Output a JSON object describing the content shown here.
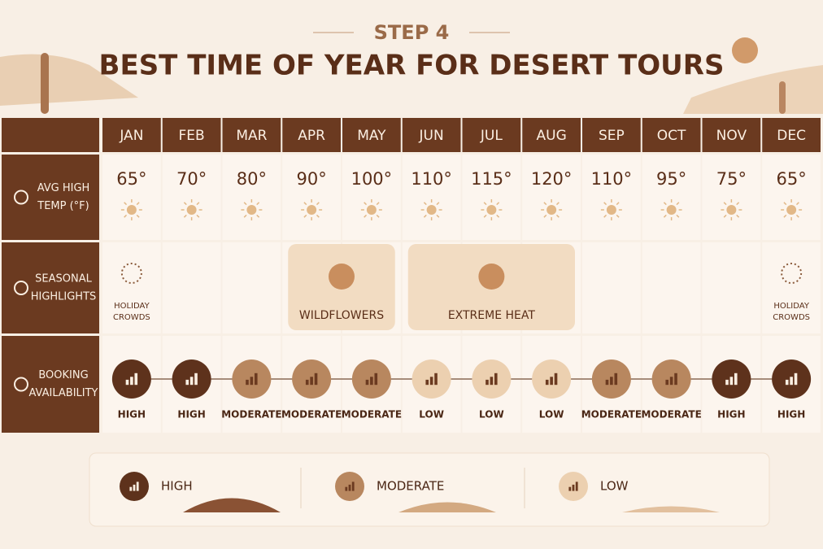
{
  "header": {
    "step": "STEP 4",
    "title": "BEST TIME OF YEAR FOR DESERT TOURS"
  },
  "table": {
    "months": [
      "JAN",
      "FEB",
      "MAR",
      "APR",
      "MAY",
      "JUN",
      "JUL",
      "AUG",
      "SEP",
      "OCT",
      "NOV",
      "DEC"
    ],
    "temperature": {
      "label": [
        "AVG HIGH",
        "TEMP (°F)"
      ],
      "values": [
        "65°",
        "70°",
        "80°",
        "90°",
        "100°",
        "110°",
        "115°",
        "120°",
        "110°",
        "95°",
        "75°",
        "65°"
      ]
    },
    "highlights": {
      "label": [
        "SEASONAL",
        "HIGHLIGHTS"
      ],
      "items": [
        "HOLIDAY CROWDS",
        "WILDFLOWERS",
        "EXTREME HEAT",
        "HOLIDAY CROWDS"
      ]
    },
    "booking": {
      "label": [
        "BOOKING",
        "AVAILABILITY"
      ],
      "values": [
        "HIGH",
        "HIGH",
        "MODERATE",
        "MODERATE",
        "MODERATE",
        "LOW",
        "LOW",
        "LOW",
        "MODERATE",
        "MODERATE",
        "HIGH",
        "HIGH"
      ]
    }
  },
  "legend": {
    "items": [
      {
        "label": "HIGH",
        "color": "#5e321c"
      },
      {
        "label": "MODERATE",
        "color": "#b8875f"
      },
      {
        "label": "LOW",
        "color": "#ecd0b0"
      }
    ]
  }
}
